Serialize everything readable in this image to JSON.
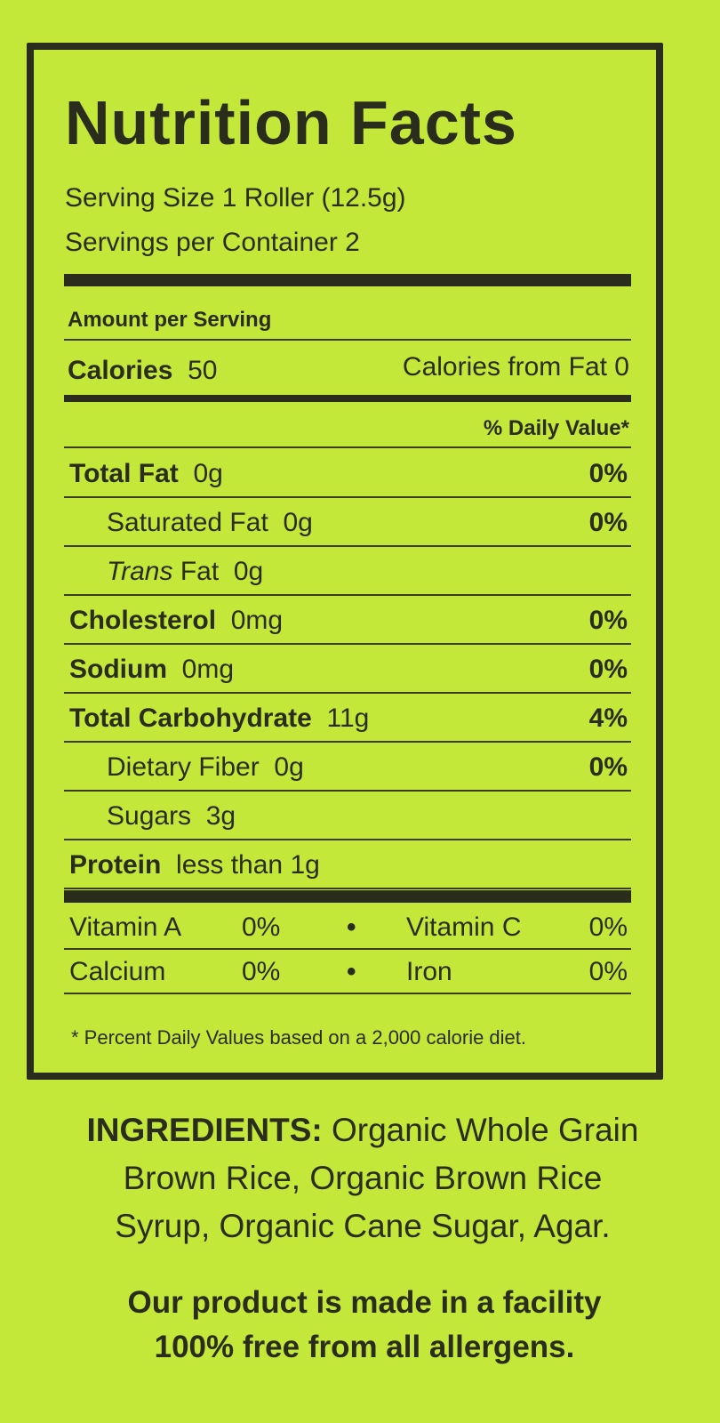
{
  "label": {
    "title": "Nutrition Facts",
    "serving_size": "Serving Size 1 Roller (12.5g)",
    "servings_per_container": "Servings per Container 2",
    "amount_per_serving": "Amount per Serving",
    "calories_label": "Calories",
    "calories_value": "50",
    "calories_from_fat": "Calories from Fat 0",
    "daily_value_header": "% Daily Value*",
    "nutrients": [
      {
        "name": "Total Fat",
        "amount": "0g",
        "pct": "0%",
        "bold": true,
        "indent": false
      },
      {
        "name": "Saturated Fat",
        "amount": "0g",
        "pct": "0%",
        "bold": false,
        "indent": true
      },
      {
        "name": "Trans",
        "name_suffix": "Fat",
        "amount": "0g",
        "pct": "",
        "bold": false,
        "indent": true
      },
      {
        "name": "Cholesterol",
        "amount": "0mg",
        "pct": "0%",
        "bold": true,
        "indent": false
      },
      {
        "name": "Sodium",
        "amount": "0mg",
        "pct": "0%",
        "bold": true,
        "indent": false
      },
      {
        "name": "Total Carbohydrate",
        "amount": "11g",
        "pct": "4%",
        "bold": true,
        "indent": false
      },
      {
        "name": "Dietary Fiber",
        "amount": "0g",
        "pct": "0%",
        "bold": false,
        "indent": true
      },
      {
        "name": "Sugars",
        "amount": "3g",
        "pct": "",
        "bold": false,
        "indent": true
      },
      {
        "name": "Protein",
        "amount": "less than 1g",
        "pct": "",
        "bold": true,
        "indent": false
      }
    ],
    "vitamins": [
      {
        "left_name": "Vitamin A",
        "left_pct": "0%",
        "right_name": "Vitamin C",
        "right_pct": "0%"
      },
      {
        "left_name": "Calcium",
        "left_pct": "0%",
        "right_name": "Iron",
        "right_pct": "0%"
      }
    ],
    "bullet": "•",
    "footnote": "* Percent Daily Values based on a 2,000 calorie diet."
  },
  "ingredients": {
    "heading": "INGREDIENTS:",
    "line1": "Organic Whole Grain",
    "line2": "Brown Rice, Organic Brown Rice",
    "line3": "Syrup, Organic Cane Sugar, Agar."
  },
  "allergen": {
    "line1": "Our product is made in a facility",
    "line2": "100% free from all allergens."
  },
  "colors": {
    "background": "#c3e83a",
    "ink": "#2b2d1c"
  }
}
